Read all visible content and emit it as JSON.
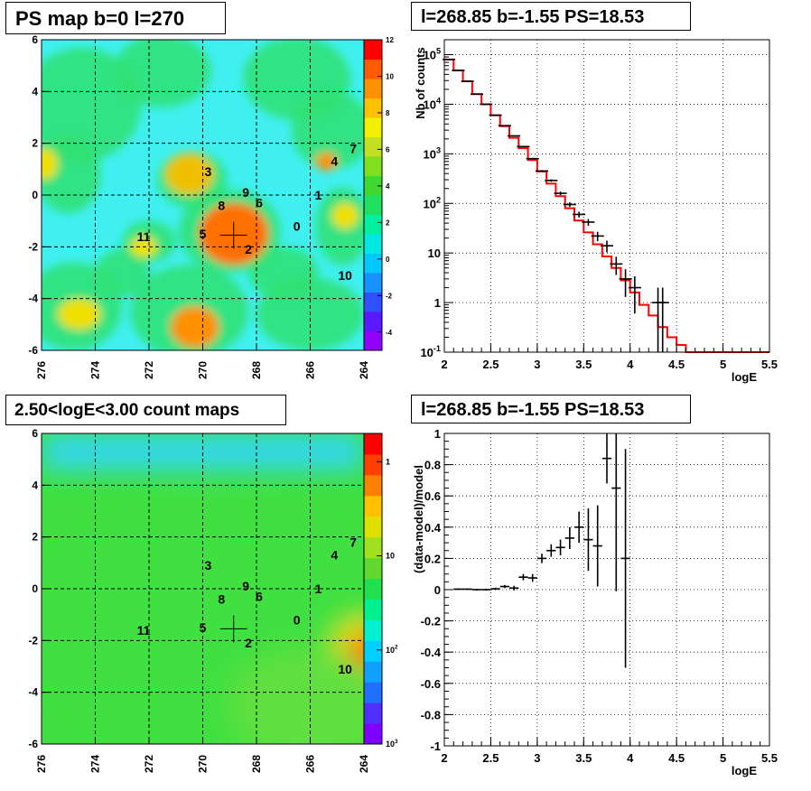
{
  "panels": {
    "ps_map": {
      "title": "PS map b=0 l=270",
      "x_ticks": [
        "276",
        "274",
        "272",
        "270",
        "268",
        "266",
        "264"
      ],
      "y_ticks": [
        "6",
        "4",
        "2",
        "0",
        "-2",
        "-4",
        "-6"
      ],
      "colorbar_ticks": [
        "12",
        "10",
        "8",
        "6",
        "4",
        "2",
        "0",
        "-2",
        "-4"
      ],
      "colorbar_colors": [
        "#9000ff",
        "#5a19ff",
        "#3050ff",
        "#1890ff",
        "#00c8ff",
        "#00e8e0",
        "#00f0a0",
        "#20e060",
        "#40d830",
        "#80e020",
        "#c0e020",
        "#f0f000",
        "#ffc000",
        "#ff9000",
        "#ff5a00",
        "#ff0000"
      ],
      "background_color": "#40f0f0",
      "sources": [
        {
          "label": "0",
          "l": 266.5,
          "b": -1.2
        },
        {
          "label": "1",
          "l": 265.7,
          "b": 0.0
        },
        {
          "label": "2",
          "l": 268.3,
          "b": -2.1
        },
        {
          "label": "3",
          "l": 269.8,
          "b": 0.9
        },
        {
          "label": "4",
          "l": 265.1,
          "b": 1.3
        },
        {
          "label": "5",
          "l": 270.0,
          "b": -1.5
        },
        {
          "label": "6",
          "l": 267.9,
          "b": -0.3
        },
        {
          "label": "7",
          "l": 264.4,
          "b": 1.8
        },
        {
          "label": "8",
          "l": 269.3,
          "b": -0.4
        },
        {
          "label": "9",
          "l": 268.4,
          "b": 0.1
        },
        {
          "label": "10",
          "l": 264.7,
          "b": -3.1
        },
        {
          "label": "11",
          "l": 272.2,
          "b": -1.6
        }
      ],
      "marker": {
        "l": 268.85,
        "b": -1.55
      },
      "hotspots": [
        {
          "l": 268.85,
          "b": -1.5,
          "rx": 0.9,
          "ry": 0.9,
          "color": "#ff0000"
        },
        {
          "l": 268.85,
          "b": -1.5,
          "rx": 1.3,
          "ry": 1.2,
          "color": "#ff7000"
        },
        {
          "l": 270.5,
          "b": 0.8,
          "rx": 0.5,
          "ry": 0.5,
          "color": "#ff3000"
        },
        {
          "l": 270.5,
          "b": 0.8,
          "rx": 0.9,
          "ry": 0.8,
          "color": "#f0c000"
        },
        {
          "l": 265.4,
          "b": 1.3,
          "rx": 0.4,
          "ry": 0.35,
          "color": "#ff9000"
        },
        {
          "l": 270.3,
          "b": -5.1,
          "rx": 0.9,
          "ry": 0.8,
          "color": "#ff9000"
        },
        {
          "l": 274.6,
          "b": -4.6,
          "rx": 0.8,
          "ry": 0.6,
          "color": "#f0e000"
        },
        {
          "l": 275.9,
          "b": 1.2,
          "rx": 0.5,
          "ry": 0.6,
          "color": "#f0e000"
        },
        {
          "l": 264.7,
          "b": -0.8,
          "rx": 0.5,
          "ry": 0.5,
          "color": "#f0e000"
        },
        {
          "l": 272.2,
          "b": -2.0,
          "rx": 0.5,
          "ry": 0.4,
          "color": "#f0e000"
        }
      ]
    },
    "count_map": {
      "title": "2.50<logE<3.00 count maps",
      "x_ticks": [
        "276",
        "274",
        "272",
        "270",
        "268",
        "266",
        "264"
      ],
      "y_ticks": [
        "6",
        "4",
        "2",
        "0",
        "-2",
        "-4",
        "-6"
      ],
      "colorbar_ticks": [
        {
          "base": "10",
          "exp": "3"
        },
        {
          "base": "10",
          "exp": "2"
        },
        {
          "base": "10",
          "exp": ""
        },
        {
          "base": "1",
          "exp": ""
        }
      ],
      "colorbar_colors": [
        "#8000ff",
        "#5030ff",
        "#2070ff",
        "#10a0ff",
        "#00d0ff",
        "#00f0d0",
        "#00f090",
        "#20e050",
        "#60d830",
        "#a0e020",
        "#e0e000",
        "#ffc000",
        "#ff8000",
        "#ff4000",
        "#ff0000"
      ],
      "background_color": "#40e040",
      "marker": {
        "l": 268.85,
        "b": -1.55
      }
    },
    "spectrum": {
      "title": "l=268.85 b=-1.55 PS=18.53",
      "xlabel": "logE",
      "ylabel": "Nb of counts",
      "x_ticks": [
        "2",
        "2.5",
        "3",
        "3.5",
        "4",
        "4.5",
        "5",
        "5.5"
      ],
      "y_ticks": [
        {
          "base": "10",
          "exp": "5"
        },
        {
          "base": "10",
          "exp": "4"
        },
        {
          "base": "10",
          "exp": "3"
        },
        {
          "base": "10",
          "exp": "2"
        },
        {
          "base": "10",
          "exp": ""
        },
        {
          "base": "1",
          "exp": ""
        },
        {
          "base": "10",
          "exp": "-1"
        }
      ],
      "model_color": "#ff0000"
    },
    "residual": {
      "title": "l=268.85 b=-1.55 PS=18.53",
      "xlabel": "logE",
      "ylabel": "(data-model)/model",
      "x_ticks": [
        "2",
        "2.5",
        "3",
        "3.5",
        "4",
        "4.5",
        "5",
        "5.5"
      ],
      "y_ticks": [
        "1",
        "0.8",
        "0.6",
        "0.4",
        "0.2",
        "0",
        "-0.2",
        "-0.4",
        "-0.6",
        "-0.8",
        "-1"
      ]
    }
  },
  "chart_data": [
    {
      "type": "heatmap",
      "title": "PS map b=0 l=270",
      "xlabel": "",
      "ylabel": "",
      "xlim": [
        276,
        264
      ],
      "ylim": [
        -6,
        6
      ],
      "zlim": [
        -5,
        12
      ],
      "colorbar_ticks": [
        12,
        10,
        8,
        6,
        4,
        2,
        0,
        -2,
        -4
      ],
      "peak": {
        "l": 268.85,
        "b": -1.55,
        "value": 12
      }
    },
    {
      "type": "heatmap",
      "title": "2.50<logE<3.00 count maps",
      "xlabel": "",
      "ylabel": "",
      "xlim": [
        276,
        264
      ],
      "ylim": [
        -6,
        6
      ],
      "zlim": [
        1,
        2000
      ],
      "zscale": "log",
      "colorbar_ticks": [
        1,
        10,
        100,
        1000
      ]
    },
    {
      "type": "line",
      "title": "l=268.85 b=-1.55 PS=18.53",
      "xlabel": "logE",
      "ylabel": "Nb of counts",
      "xlim": [
        2,
        5.5
      ],
      "ylim": [
        0.1,
        200000
      ],
      "yscale": "log",
      "grid": true,
      "series": [
        {
          "kind": "step",
          "bin_edges": [
            2.0,
            2.1,
            2.2,
            2.3,
            2.4,
            2.5,
            2.6,
            2.7,
            2.8,
            2.9,
            3.0,
            3.1,
            3.2,
            3.3,
            3.4,
            3.5,
            3.6,
            3.7,
            3.8,
            3.9,
            4.0,
            4.1,
            4.2,
            4.3,
            4.4,
            4.5,
            4.6,
            5.5
          ],
          "values": [
            80000,
            48000,
            29000,
            16000,
            10000,
            6000,
            3600,
            2100,
            1300,
            750,
            440,
            250,
            140,
            80,
            45,
            26,
            15,
            8.5,
            5,
            2.8,
            1.6,
            0.9,
            0.55,
            0.32,
            0.2,
            0.14,
            0.1
          ]
        },
        {
          "kind": "errorbar",
          "x": [
            2.05,
            2.15,
            2.25,
            2.35,
            2.45,
            2.55,
            2.65,
            2.75,
            2.85,
            2.95,
            3.05,
            3.15,
            3.25,
            3.35,
            3.45,
            3.55,
            3.65,
            3.75,
            3.85,
            3.95,
            4.05,
            4.3,
            4.35
          ],
          "y": [
            80000,
            48000,
            29000,
            16000,
            10000,
            6000,
            3700,
            2300,
            1400,
            800,
            450,
            290,
            160,
            95,
            60,
            42,
            22,
            14,
            6,
            3,
            2,
            1,
            1
          ],
          "yerr": [
            300,
            220,
            170,
            130,
            100,
            80,
            60,
            48,
            37,
            28,
            21,
            17,
            13,
            10,
            8,
            6.5,
            4.7,
            3.7,
            2.4,
            1.7,
            1.4,
            1,
            1
          ]
        }
      ]
    },
    {
      "type": "scatter",
      "title": "l=268.85 b=-1.55 PS=18.53",
      "xlabel": "logE",
      "ylabel": "(data-model)/model",
      "xlim": [
        2,
        5.5
      ],
      "ylim": [
        -1,
        1
      ],
      "grid": true,
      "x": [
        2.15,
        2.25,
        2.35,
        2.45,
        2.55,
        2.65,
        2.75,
        2.85,
        2.95,
        3.05,
        3.15,
        3.25,
        3.35,
        3.45,
        3.55,
        3.65,
        3.75,
        3.85,
        3.95
      ],
      "y": [
        0.003,
        0.003,
        0.0,
        0.0,
        0.005,
        0.02,
        0.01,
        0.08,
        0.075,
        0.2,
        0.25,
        0.27,
        0.33,
        0.4,
        0.32,
        0.28,
        0.84,
        0.65,
        0.2
      ],
      "yerr": [
        0.004,
        0.004,
        0.005,
        0.006,
        0.008,
        0.01,
        0.015,
        0.02,
        0.025,
        0.03,
        0.04,
        0.05,
        0.07,
        0.1,
        0.2,
        0.26,
        0.16,
        0.66,
        0.7
      ],
      "xerr": [
        0.05,
        0.05,
        0.05,
        0.05,
        0.05,
        0.05,
        0.05,
        0.05,
        0.05,
        0.05,
        0.05,
        0.05,
        0.05,
        0.05,
        0.05,
        0.05,
        0.05,
        0.05,
        0.05
      ]
    }
  ]
}
